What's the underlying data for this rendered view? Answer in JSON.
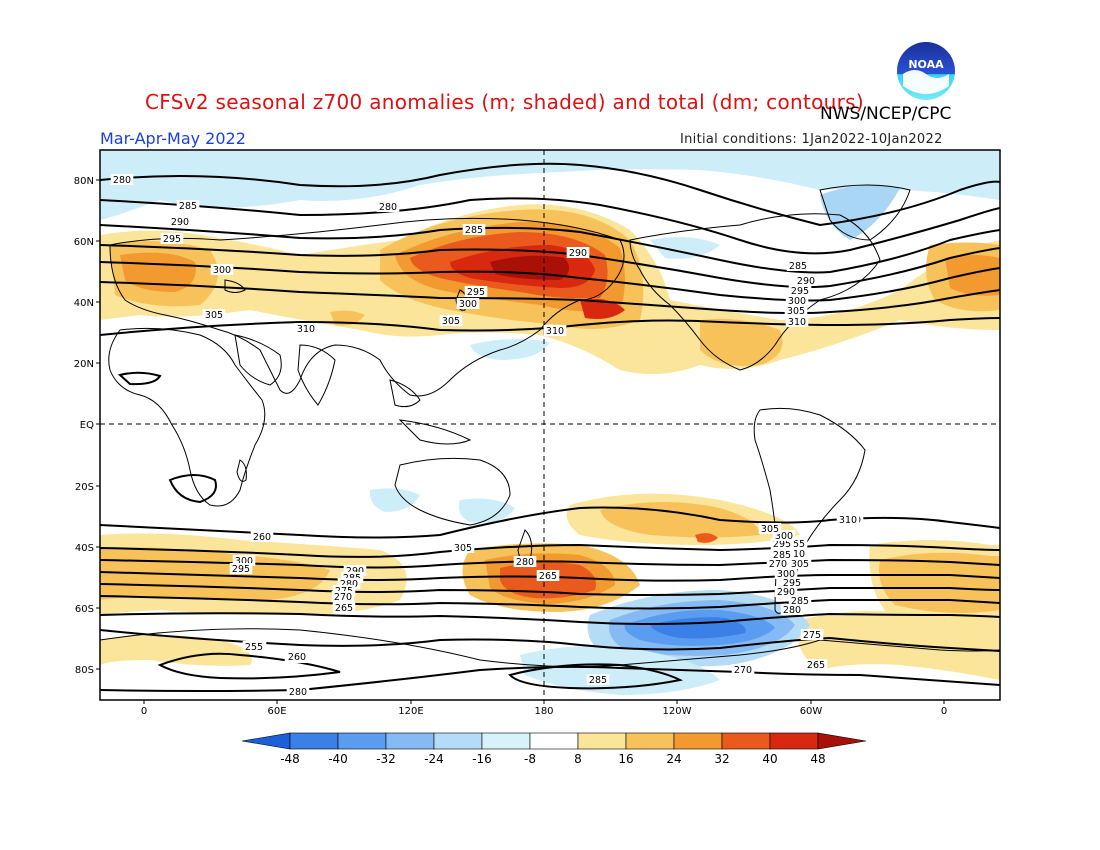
{
  "title": "CFSv2 seasonal z700 anomalies (m; shaded) and total (dm; contours)",
  "agency": "NWS/NCEP/CPC",
  "logo_text": "NOAA",
  "period": "Mar-Apr-May 2022",
  "initial_conditions": "Initial conditions: 1Jan2022-10Jan2022",
  "lat_labels": [
    "80N",
    "60N",
    "40N",
    "20N",
    "EQ",
    "20S",
    "40S",
    "60S",
    "80S"
  ],
  "lon_labels": [
    "0",
    "60E",
    "120E",
    "180",
    "120W",
    "60W",
    "0"
  ],
  "colorbar": {
    "ticks": [
      "-48",
      "-40",
      "-32",
      "-24",
      "-16",
      "-8",
      "8",
      "16",
      "24",
      "32",
      "40",
      "48"
    ],
    "colors": [
      "#1c5fd8",
      "#3a80e6",
      "#5a9cf0",
      "#86baf4",
      "#b4dcf6",
      "#d7f2fa",
      "#ffffff",
      "#fbe59a",
      "#f8c25a",
      "#f29a30",
      "#ea5a1c",
      "#d82810",
      "#a81008"
    ]
  },
  "contour_labels": [
    "280",
    "285",
    "290",
    "295",
    "300",
    "305",
    "310",
    "280",
    "285",
    "285",
    "290",
    "295",
    "300",
    "305",
    "310",
    "290",
    "295",
    "300",
    "305",
    "310",
    "310",
    "305",
    "300",
    "295",
    "290",
    "285",
    "280",
    "275",
    "270",
    "265",
    "260",
    "255",
    "310",
    "305",
    "300",
    "295",
    "290",
    "285",
    "280",
    "275",
    "270",
    "265",
    "260",
    "265",
    "280",
    "285",
    "260",
    "255",
    "280",
    "265",
    "270",
    "285",
    "295",
    "300",
    "305",
    "310"
  ]
}
